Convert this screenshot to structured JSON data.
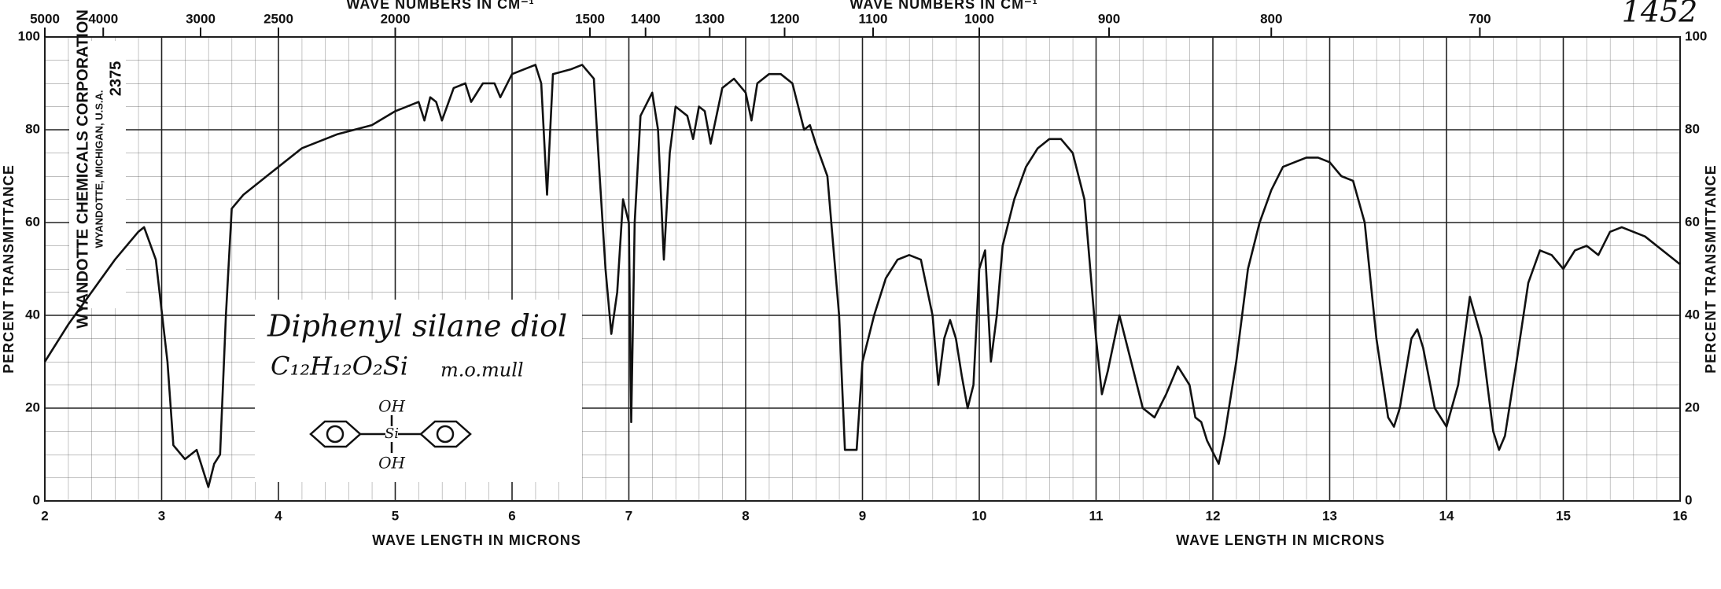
{
  "chart_data": {
    "type": "line",
    "title": "1452",
    "x_label": "WAVE LENGTH IN MICRONS",
    "x2_label": "WAVE NUMBERS IN CM⁻¹",
    "y_label": "PERCENT TRANSMITTANCE",
    "x": [
      2.0,
      2.2,
      2.4,
      2.6,
      2.8,
      2.85,
      2.95,
      3.05,
      3.1,
      3.2,
      3.3,
      3.4,
      3.45,
      3.5,
      3.55,
      3.6,
      3.7,
      3.9,
      4.2,
      4.5,
      4.8,
      5.0,
      5.2,
      5.25,
      5.3,
      5.35,
      5.4,
      5.5,
      5.6,
      5.65,
      5.75,
      5.85,
      5.9,
      6.0,
      6.2,
      6.25,
      6.3,
      6.35,
      6.5,
      6.6,
      6.7,
      6.75,
      6.8,
      6.85,
      6.9,
      6.95,
      7.0,
      7.02,
      7.05,
      7.1,
      7.2,
      7.25,
      7.3,
      7.35,
      7.4,
      7.5,
      7.55,
      7.6,
      7.65,
      7.7,
      7.8,
      7.9,
      8.0,
      8.05,
      8.1,
      8.2,
      8.3,
      8.4,
      8.5,
      8.55,
      8.6,
      8.7,
      8.8,
      8.85,
      8.95,
      9.0,
      9.1,
      9.2,
      9.3,
      9.4,
      9.5,
      9.6,
      9.65,
      9.7,
      9.75,
      9.8,
      9.85,
      9.9,
      9.95,
      10.0,
      10.05,
      10.1,
      10.15,
      10.2,
      10.3,
      10.4,
      10.5,
      10.6,
      10.7,
      10.8,
      10.9,
      11.0,
      11.05,
      11.1,
      11.2,
      11.3,
      11.4,
      11.5,
      11.6,
      11.7,
      11.8,
      11.85,
      11.9,
      11.95,
      12.05,
      12.1,
      12.2,
      12.3,
      12.4,
      12.5,
      12.6,
      12.8,
      12.9,
      13.0,
      13.1,
      13.2,
      13.3,
      13.4,
      13.5,
      13.55,
      13.6,
      13.7,
      13.75,
      13.8,
      13.9,
      14.0,
      14.1,
      14.2,
      14.3,
      14.4,
      14.45,
      14.5,
      14.6,
      14.7,
      14.8,
      14.9,
      15.0,
      15.1,
      15.2,
      15.3,
      15.4,
      15.5,
      15.7,
      16.0
    ],
    "values": [
      30,
      38,
      45,
      52,
      58,
      59,
      52,
      30,
      12,
      9,
      11,
      3,
      8,
      10,
      40,
      63,
      66,
      70,
      76,
      79,
      81,
      84,
      86,
      82,
      87,
      86,
      82,
      89,
      90,
      86,
      90,
      90,
      87,
      92,
      94,
      90,
      66,
      92,
      93,
      94,
      91,
      70,
      50,
      36,
      45,
      65,
      60,
      17,
      60,
      83,
      88,
      80,
      52,
      75,
      85,
      83,
      78,
      85,
      84,
      77,
      89,
      91,
      88,
      82,
      90,
      92,
      92,
      90,
      80,
      81,
      77,
      70,
      40,
      11,
      11,
      30,
      40,
      48,
      52,
      53,
      52,
      40,
      25,
      35,
      39,
      35,
      27,
      20,
      25,
      50,
      54,
      30,
      40,
      55,
      65,
      72,
      76,
      78,
      78,
      75,
      65,
      35,
      23,
      28,
      40,
      30,
      20,
      18,
      23,
      29,
      25,
      18,
      17,
      13,
      8,
      14,
      30,
      50,
      60,
      67,
      72,
      74,
      74,
      73,
      70,
      69,
      60,
      35,
      18,
      16,
      20,
      35,
      37,
      33,
      20,
      16,
      25,
      44,
      35,
      15,
      11,
      14,
      30,
      47,
      54,
      53,
      50,
      54,
      55,
      53,
      58,
      59,
      57,
      51
    ],
    "color": "#111111",
    "xlim": [
      2,
      16
    ],
    "ylim": [
      0,
      100
    ],
    "xticks": [
      2,
      3,
      4,
      5,
      6,
      7,
      8,
      9,
      10,
      11,
      12,
      13,
      14,
      15,
      16
    ],
    "yticks": [
      0,
      20,
      40,
      60,
      80,
      100
    ],
    "x2lim": [
      5000,
      625
    ],
    "x2ticks": [
      5000,
      4000,
      3000,
      2500,
      2000,
      1500,
      1400,
      1300,
      1200,
      1100,
      1000,
      900,
      800,
      700
    ],
    "grid": true,
    "annotations": {
      "company": "WYANDOTTE CHEMICALS CORPORATION",
      "location": "WYANDOTTE, MICHIGAN, U.S.A.",
      "chart_number": "2375",
      "compound": "Diphenyl silane diol",
      "formula": "C₁₂H₁₂O₂Si",
      "medium": "m.o.mull",
      "hydroxyl": "OH"
    }
  }
}
